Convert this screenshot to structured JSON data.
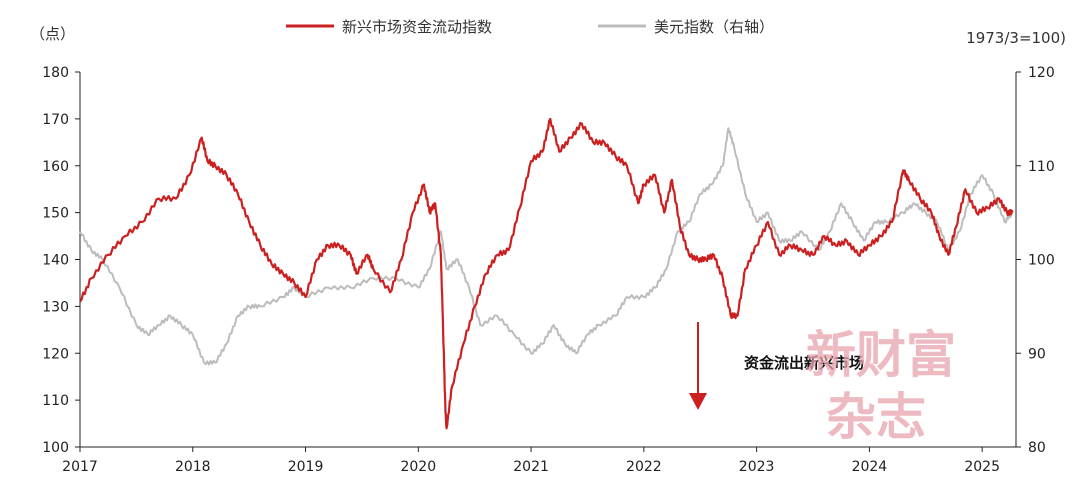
{
  "chart_data": {
    "type": "line",
    "left_unit": "（点）",
    "right_unit": "1973/3=100)",
    "y_left": {
      "min": 100,
      "max": 180,
      "ticks": [
        "100",
        "110",
        "120",
        "130",
        "140",
        "150",
        "160",
        "170",
        "180"
      ]
    },
    "y_right": {
      "min": 80,
      "max": 120,
      "ticks": [
        "80",
        "90",
        "100",
        "110",
        "120"
      ]
    },
    "x": {
      "min": 2017,
      "max": 2025.3,
      "ticks": [
        "2017",
        "2018",
        "2019",
        "2020",
        "2021",
        "2022",
        "2023",
        "2024",
        "2025"
      ]
    },
    "series": [
      {
        "name": "新兴市场资金流动指数",
        "axis": "left",
        "color": "#cc1f1f",
        "points": [
          [
            2017.0,
            131
          ],
          [
            2017.1,
            136
          ],
          [
            2017.25,
            141
          ],
          [
            2017.4,
            145
          ],
          [
            2017.55,
            148
          ],
          [
            2017.7,
            153
          ],
          [
            2017.85,
            153
          ],
          [
            2017.97,
            158
          ],
          [
            2018.08,
            166
          ],
          [
            2018.13,
            161
          ],
          [
            2018.2,
            160
          ],
          [
            2018.3,
            158
          ],
          [
            2018.4,
            154
          ],
          [
            2018.5,
            148
          ],
          [
            2018.6,
            143
          ],
          [
            2018.7,
            139
          ],
          [
            2018.8,
            137
          ],
          [
            2018.9,
            135
          ],
          [
            2019.0,
            132
          ],
          [
            2019.1,
            140
          ],
          [
            2019.2,
            143
          ],
          [
            2019.3,
            143
          ],
          [
            2019.4,
            141
          ],
          [
            2019.45,
            137
          ],
          [
            2019.55,
            141
          ],
          [
            2019.6,
            138
          ],
          [
            2019.75,
            133
          ],
          [
            2019.85,
            140
          ],
          [
            2019.95,
            150
          ],
          [
            2020.05,
            156
          ],
          [
            2020.1,
            150
          ],
          [
            2020.15,
            152
          ],
          [
            2020.2,
            141
          ],
          [
            2020.22,
            125
          ],
          [
            2020.24,
            108
          ],
          [
            2020.25,
            104
          ],
          [
            2020.3,
            113
          ],
          [
            2020.4,
            122
          ],
          [
            2020.5,
            130
          ],
          [
            2020.6,
            137
          ],
          [
            2020.7,
            141
          ],
          [
            2020.8,
            142
          ],
          [
            2020.9,
            151
          ],
          [
            2021.0,
            161
          ],
          [
            2021.1,
            163
          ],
          [
            2021.17,
            170
          ],
          [
            2021.25,
            163
          ],
          [
            2021.35,
            166
          ],
          [
            2021.45,
            169
          ],
          [
            2021.55,
            165
          ],
          [
            2021.65,
            165
          ],
          [
            2021.75,
            162
          ],
          [
            2021.85,
            160
          ],
          [
            2021.95,
            152
          ],
          [
            2022.0,
            156
          ],
          [
            2022.1,
            158
          ],
          [
            2022.18,
            150
          ],
          [
            2022.25,
            157
          ],
          [
            2022.32,
            147
          ],
          [
            2022.4,
            141
          ],
          [
            2022.48,
            140
          ],
          [
            2022.55,
            140
          ],
          [
            2022.62,
            141
          ],
          [
            2022.7,
            136
          ],
          [
            2022.77,
            128
          ],
          [
            2022.83,
            128
          ],
          [
            2022.9,
            138
          ],
          [
            2023.0,
            143
          ],
          [
            2023.1,
            148
          ],
          [
            2023.2,
            141
          ],
          [
            2023.3,
            143
          ],
          [
            2023.4,
            142
          ],
          [
            2023.5,
            141
          ],
          [
            2023.6,
            145
          ],
          [
            2023.7,
            143
          ],
          [
            2023.8,
            144
          ],
          [
            2023.9,
            141
          ],
          [
            2024.0,
            143
          ],
          [
            2024.1,
            145
          ],
          [
            2024.2,
            148
          ],
          [
            2024.3,
            159
          ],
          [
            2024.35,
            157
          ],
          [
            2024.45,
            153
          ],
          [
            2024.55,
            150
          ],
          [
            2024.62,
            145
          ],
          [
            2024.7,
            141
          ],
          [
            2024.77,
            147
          ],
          [
            2024.85,
            155
          ],
          [
            2024.95,
            150
          ],
          [
            2025.05,
            151
          ],
          [
            2025.15,
            153
          ],
          [
            2025.22,
            150
          ],
          [
            2025.27,
            150
          ]
        ]
      },
      {
        "name": "美元指数（右轴）",
        "axis": "right",
        "color": "#bcbcbc",
        "points": [
          [
            2017.0,
            103
          ],
          [
            2017.1,
            101
          ],
          [
            2017.2,
            100
          ],
          [
            2017.35,
            97
          ],
          [
            2017.5,
            93
          ],
          [
            2017.6,
            92
          ],
          [
            2017.7,
            93
          ],
          [
            2017.8,
            94
          ],
          [
            2017.9,
            93
          ],
          [
            2018.0,
            92
          ],
          [
            2018.1,
            89
          ],
          [
            2018.2,
            89
          ],
          [
            2018.3,
            91
          ],
          [
            2018.4,
            94
          ],
          [
            2018.5,
            95
          ],
          [
            2018.6,
            95
          ],
          [
            2018.8,
            96
          ],
          [
            2018.9,
            97
          ],
          [
            2019.0,
            96
          ],
          [
            2019.2,
            97
          ],
          [
            2019.4,
            97
          ],
          [
            2019.6,
            98
          ],
          [
            2019.8,
            98
          ],
          [
            2020.0,
            97
          ],
          [
            2020.1,
            99
          ],
          [
            2020.2,
            103
          ],
          [
            2020.25,
            99
          ],
          [
            2020.35,
            100
          ],
          [
            2020.45,
            97
          ],
          [
            2020.55,
            93
          ],
          [
            2020.7,
            94
          ],
          [
            2020.85,
            92
          ],
          [
            2021.0,
            90
          ],
          [
            2021.1,
            91
          ],
          [
            2021.2,
            93
          ],
          [
            2021.3,
            91
          ],
          [
            2021.4,
            90
          ],
          [
            2021.5,
            92
          ],
          [
            2021.6,
            93
          ],
          [
            2021.75,
            94
          ],
          [
            2021.85,
            96
          ],
          [
            2022.0,
            96
          ],
          [
            2022.1,
            97
          ],
          [
            2022.2,
            99
          ],
          [
            2022.3,
            103
          ],
          [
            2022.4,
            104
          ],
          [
            2022.5,
            107
          ],
          [
            2022.6,
            108
          ],
          [
            2022.7,
            110
          ],
          [
            2022.75,
            114
          ],
          [
            2022.8,
            112
          ],
          [
            2022.9,
            107
          ],
          [
            2023.0,
            104
          ],
          [
            2023.1,
            105
          ],
          [
            2023.2,
            102
          ],
          [
            2023.3,
            102
          ],
          [
            2023.4,
            103
          ],
          [
            2023.55,
            101
          ],
          [
            2023.65,
            103
          ],
          [
            2023.75,
            106
          ],
          [
            2023.85,
            104
          ],
          [
            2023.95,
            102
          ],
          [
            2024.05,
            104
          ],
          [
            2024.15,
            104
          ],
          [
            2024.3,
            105
          ],
          [
            2024.4,
            106
          ],
          [
            2024.5,
            105
          ],
          [
            2024.6,
            104
          ],
          [
            2024.7,
            101
          ],
          [
            2024.8,
            103
          ],
          [
            2024.9,
            107
          ],
          [
            2025.0,
            109
          ],
          [
            2025.1,
            107
          ],
          [
            2025.2,
            104
          ],
          [
            2025.27,
            105
          ]
        ]
      }
    ],
    "annotation": "资金流出新兴市场",
    "watermark": [
      "新财富",
      "杂志"
    ],
    "grid": false,
    "legend_position": "top-center"
  }
}
